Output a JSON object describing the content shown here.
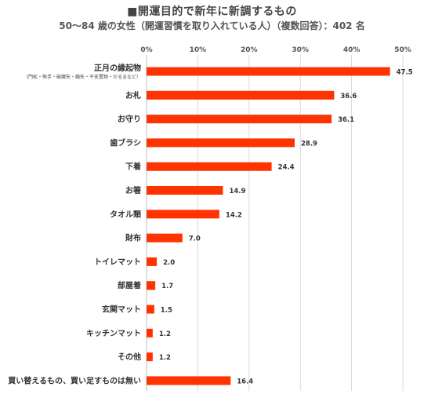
{
  "title": "■開運目的で新年に新調するもの",
  "subtitle": "50～84 歳の女性（開運習慣を取り入れている人）（複数回答）：402 名",
  "colors": {
    "bar": "#ff3300",
    "grid": "#d9d9d9"
  },
  "chart_data": {
    "type": "bar",
    "orientation": "horizontal",
    "title": "■開運目的で新年に新調するもの",
    "subtitle": "50～84 歳の女性（開運習慣を取り入れている人）（複数回答）：402 名",
    "xlim": [
      0,
      50
    ],
    "ticks": [
      "0%",
      "10%",
      "20%",
      "30%",
      "40%",
      "50%"
    ],
    "tick_values": [
      0,
      10,
      20,
      30,
      40,
      50
    ],
    "grid": true,
    "categories": [
      "正月の縁起物",
      "お札",
      "お守り",
      "歯ブラシ",
      "下着",
      "お箸",
      "タオル類",
      "財布",
      "トイレマット",
      "部屋着",
      "玄関マット",
      "キッチンマット",
      "その他",
      "買い替えるもの、買い足すものは無い"
    ],
    "category_notes": [
      "（門松・熊手・破魔矢・繭矢・干支置物・だるまなど）"
    ],
    "values": [
      47.5,
      36.6,
      36.1,
      28.9,
      24.4,
      14.9,
      14.2,
      7.0,
      2.0,
      1.7,
      1.5,
      1.2,
      1.2,
      16.4
    ],
    "value_labels": [
      "47.5",
      "36.6",
      "36.1",
      "28.9",
      "24.4",
      "14.9",
      "14.2",
      "7.0",
      "2.0",
      "1.7",
      "1.5",
      "1.2",
      "1.2",
      "16.4"
    ]
  }
}
